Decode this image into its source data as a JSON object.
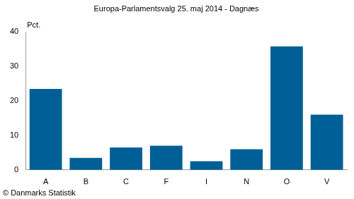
{
  "chart_data": {
    "type": "bar",
    "title": "Europa-Parlamentsvalg 25. maj 2014 - Dagnæs",
    "y_label": "Pct.",
    "source": "© Danmarks Statistik",
    "categories": [
      "A",
      "B",
      "C",
      "F",
      "I",
      "N",
      "O",
      "V"
    ],
    "values": [
      23.5,
      3.5,
      6.5,
      7.0,
      2.5,
      6.0,
      35.8,
      16.0
    ],
    "color": "#005f96",
    "ylim": [
      0,
      40
    ],
    "yticks": [
      0,
      10,
      20,
      30,
      40
    ],
    "grid": false
  }
}
